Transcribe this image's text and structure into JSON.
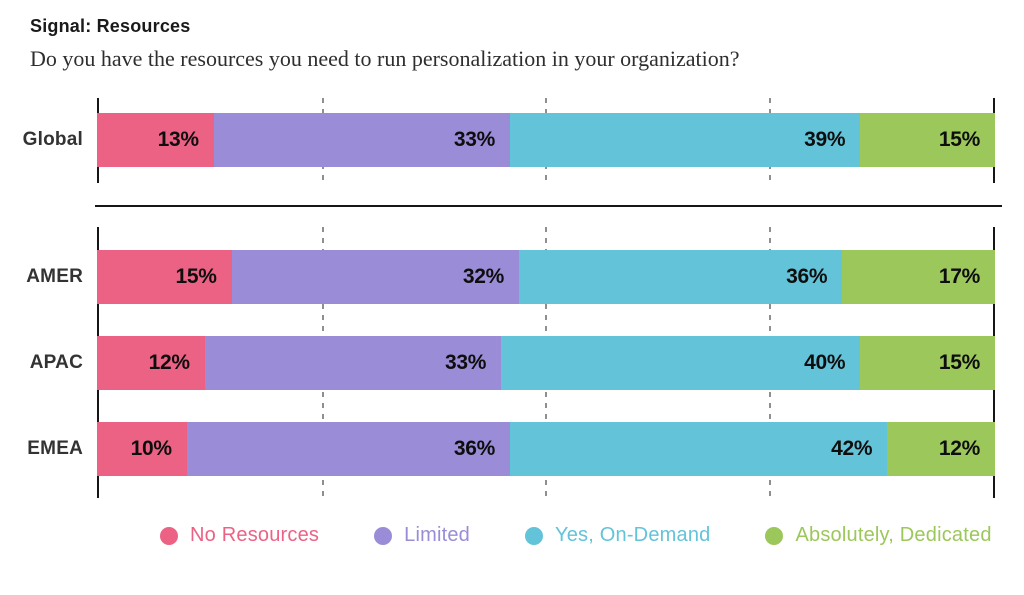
{
  "header": {
    "title": "Signal: Resources",
    "subtitle": "Do you have the resources you need to run personalization in your organization?"
  },
  "chart_data": {
    "type": "bar",
    "orientation": "horizontal-stacked",
    "title": "Signal: Resources",
    "subtitle": "Do you have the resources you need to run personalization in your organization?",
    "xlim": [
      0,
      100
    ],
    "value_suffix": "%",
    "gridlines_percent": [
      25,
      50,
      75
    ],
    "grid": "dashed-vertical",
    "legend_position": "bottom",
    "series": [
      {
        "name": "No Resources",
        "color": "#EC6284"
      },
      {
        "name": "Limited",
        "color": "#9A8CD7"
      },
      {
        "name": "Yes, On-Demand",
        "color": "#63C3D9"
      },
      {
        "name": "Absolutely, Dedicated",
        "color": "#9CC75A"
      }
    ],
    "groups": [
      {
        "name": "global",
        "rows": [
          {
            "label": "Global",
            "values": [
              13,
              33,
              39,
              15
            ]
          }
        ]
      },
      {
        "name": "regions",
        "rows": [
          {
            "label": "AMER",
            "values": [
              15,
              32,
              36,
              17
            ]
          },
          {
            "label": "APAC",
            "values": [
              12,
              33,
              40,
              15
            ]
          },
          {
            "label": "EMEA",
            "values": [
              10,
              36,
              42,
              12
            ]
          }
        ]
      }
    ]
  }
}
